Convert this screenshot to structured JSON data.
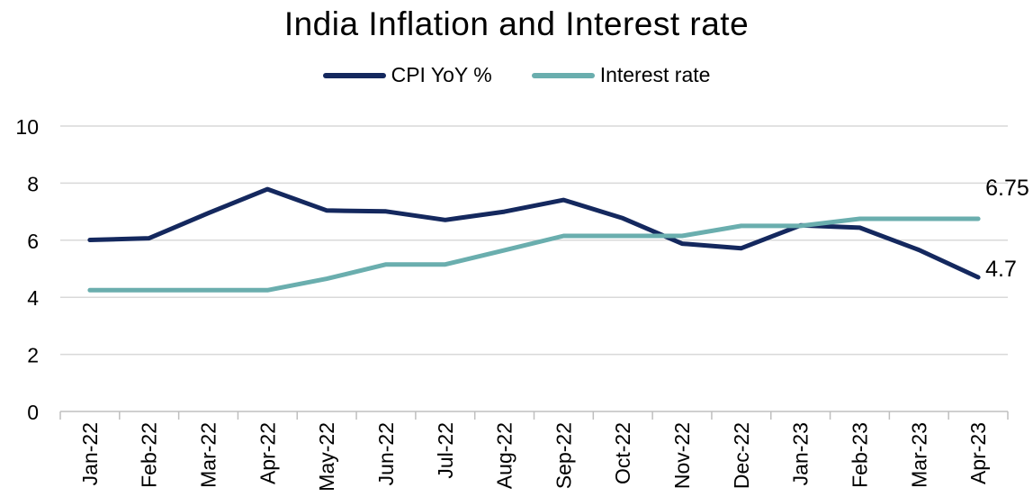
{
  "chart_data": {
    "type": "line",
    "title": "India Inflation and Interest rate",
    "xlabel": "",
    "ylabel": "",
    "ylim": [
      0,
      10
    ],
    "yticks": [
      0,
      2,
      4,
      6,
      8,
      10
    ],
    "grid": true,
    "legend": "top",
    "categories": [
      "Jan-22",
      "Feb-22",
      "Mar-22",
      "Apr-22",
      "May-22",
      "Jun-22",
      "Jul-22",
      "Aug-22",
      "Sep-22",
      "Oct-22",
      "Nov-22",
      "Dec-22",
      "Jan-23",
      "Feb-23",
      "Mar-23",
      "Apr-23"
    ],
    "series": [
      {
        "name": "CPI YoY %",
        "color": "#14285e",
        "values": [
          6.01,
          6.07,
          6.95,
          7.79,
          7.04,
          7.01,
          6.71,
          7.0,
          7.41,
          6.77,
          5.88,
          5.72,
          6.52,
          6.44,
          5.66,
          4.7
        ],
        "end_label": "4.7"
      },
      {
        "name": "Interest rate",
        "color": "#6aaeae",
        "values": [
          4.25,
          4.25,
          4.25,
          4.25,
          4.65,
          5.15,
          5.15,
          5.65,
          6.15,
          6.15,
          6.15,
          6.5,
          6.5,
          6.75,
          6.75,
          6.75
        ],
        "end_label": "6.75"
      }
    ]
  }
}
